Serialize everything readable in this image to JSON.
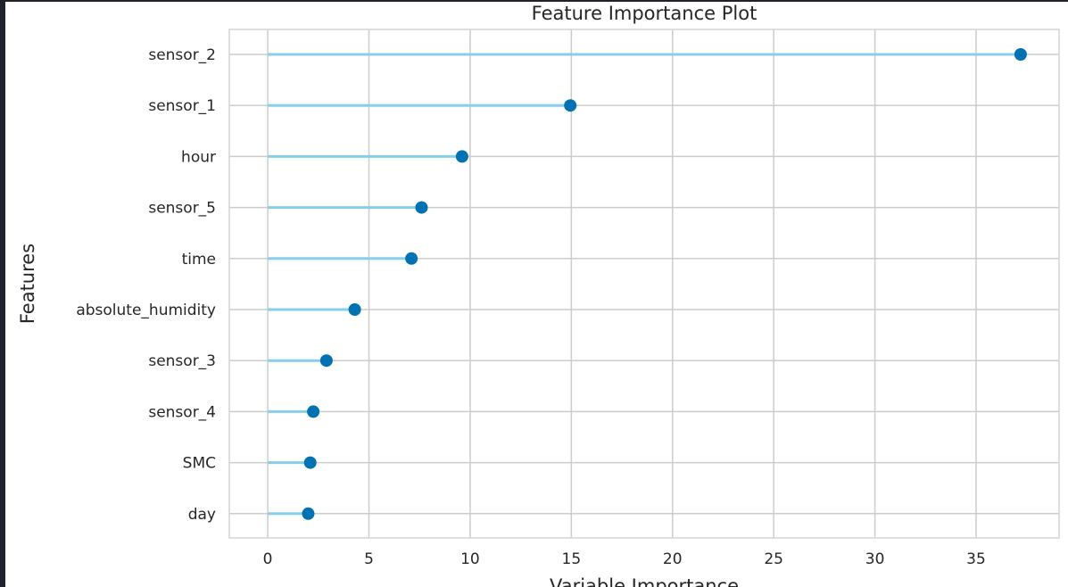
{
  "chart_data": {
    "type": "lollipop",
    "orientation": "horizontal",
    "title": "Feature Importance Plot",
    "xlabel": "Variable Importance",
    "ylabel": "Features",
    "xlim": [
      -1.9,
      39.1
    ],
    "xticks": [
      0,
      5,
      10,
      15,
      20,
      25,
      30,
      35
    ],
    "grid": true,
    "colors": {
      "stem": "#87ceeb",
      "dot": "#0072b2",
      "grid": "#cccccc",
      "frame": "#d4d4d4"
    },
    "categories": [
      "sensor_2",
      "sensor_1",
      "hour",
      "sensor_5",
      "time",
      "absolute_humidity",
      "sensor_3",
      "sensor_4",
      "SMC",
      "day"
    ],
    "values": [
      37.2,
      14.95,
      9.6,
      7.6,
      7.1,
      4.3,
      2.9,
      2.25,
      2.1,
      2.0
    ]
  }
}
